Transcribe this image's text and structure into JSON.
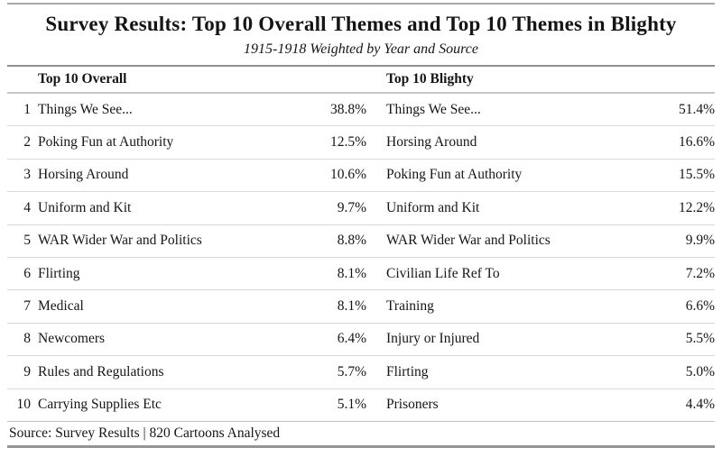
{
  "chart_data": {
    "type": "table",
    "title": "Survey Results: Top 10 Overall Themes and Top 10 Themes in Blighty",
    "subtitle": "1915-1918 Weighted by Year and Source",
    "headers": {
      "overall": "Top 10 Overall",
      "blighty": "Top 10 Blighty"
    },
    "rows": [
      {
        "rank": "1",
        "overall_theme": "Things We See...",
        "overall_pct": "38.8%",
        "blighty_theme": "Things We See...",
        "blighty_pct": "51.4%"
      },
      {
        "rank": "2",
        "overall_theme": "Poking Fun at Authority",
        "overall_pct": "12.5%",
        "blighty_theme": "Horsing Around",
        "blighty_pct": "16.6%"
      },
      {
        "rank": "3",
        "overall_theme": "Horsing Around",
        "overall_pct": "10.6%",
        "blighty_theme": "Poking Fun at Authority",
        "blighty_pct": "15.5%"
      },
      {
        "rank": "4",
        "overall_theme": "Uniform and Kit",
        "overall_pct": "9.7%",
        "blighty_theme": "Uniform and Kit",
        "blighty_pct": "12.2%"
      },
      {
        "rank": "5",
        "overall_theme": "WAR Wider War and Politics",
        "overall_pct": "8.8%",
        "blighty_theme": "WAR Wider War and Politics",
        "blighty_pct": "9.9%"
      },
      {
        "rank": "6",
        "overall_theme": "Flirting",
        "overall_pct": "8.1%",
        "blighty_theme": "Civilian Life Ref To",
        "blighty_pct": "7.2%"
      },
      {
        "rank": "7",
        "overall_theme": "Medical",
        "overall_pct": "8.1%",
        "blighty_theme": "Training",
        "blighty_pct": "6.6%"
      },
      {
        "rank": "8",
        "overall_theme": "Newcomers",
        "overall_pct": "6.4%",
        "blighty_theme": "Injury or Injured",
        "blighty_pct": "5.5%"
      },
      {
        "rank": "9",
        "overall_theme": "Rules and Regulations",
        "overall_pct": "5.7%",
        "blighty_theme": "Flirting",
        "blighty_pct": "5.0%"
      },
      {
        "rank": "10",
        "overall_theme": "Carrying Supplies Etc",
        "overall_pct": "5.1%",
        "blighty_theme": "Prisoners",
        "blighty_pct": "4.4%"
      }
    ],
    "source_note": "Source: Survey Results | 820 Cartoons Analysed",
    "layout": {
      "grid": "off",
      "columns_visible": [
        "rank",
        "overall_theme",
        "overall_pct",
        "blighty_theme",
        "blighty_pct"
      ]
    }
  },
  "colors": {
    "background": "#ffffff",
    "text": "#151515",
    "rule_outer": "#a9a9a9",
    "rule_header_top": "#8f8f8f",
    "rule_header_bottom": "#c6c6c6",
    "row_separator": "#d9d9d9",
    "rule_bottom": "#949494"
  }
}
